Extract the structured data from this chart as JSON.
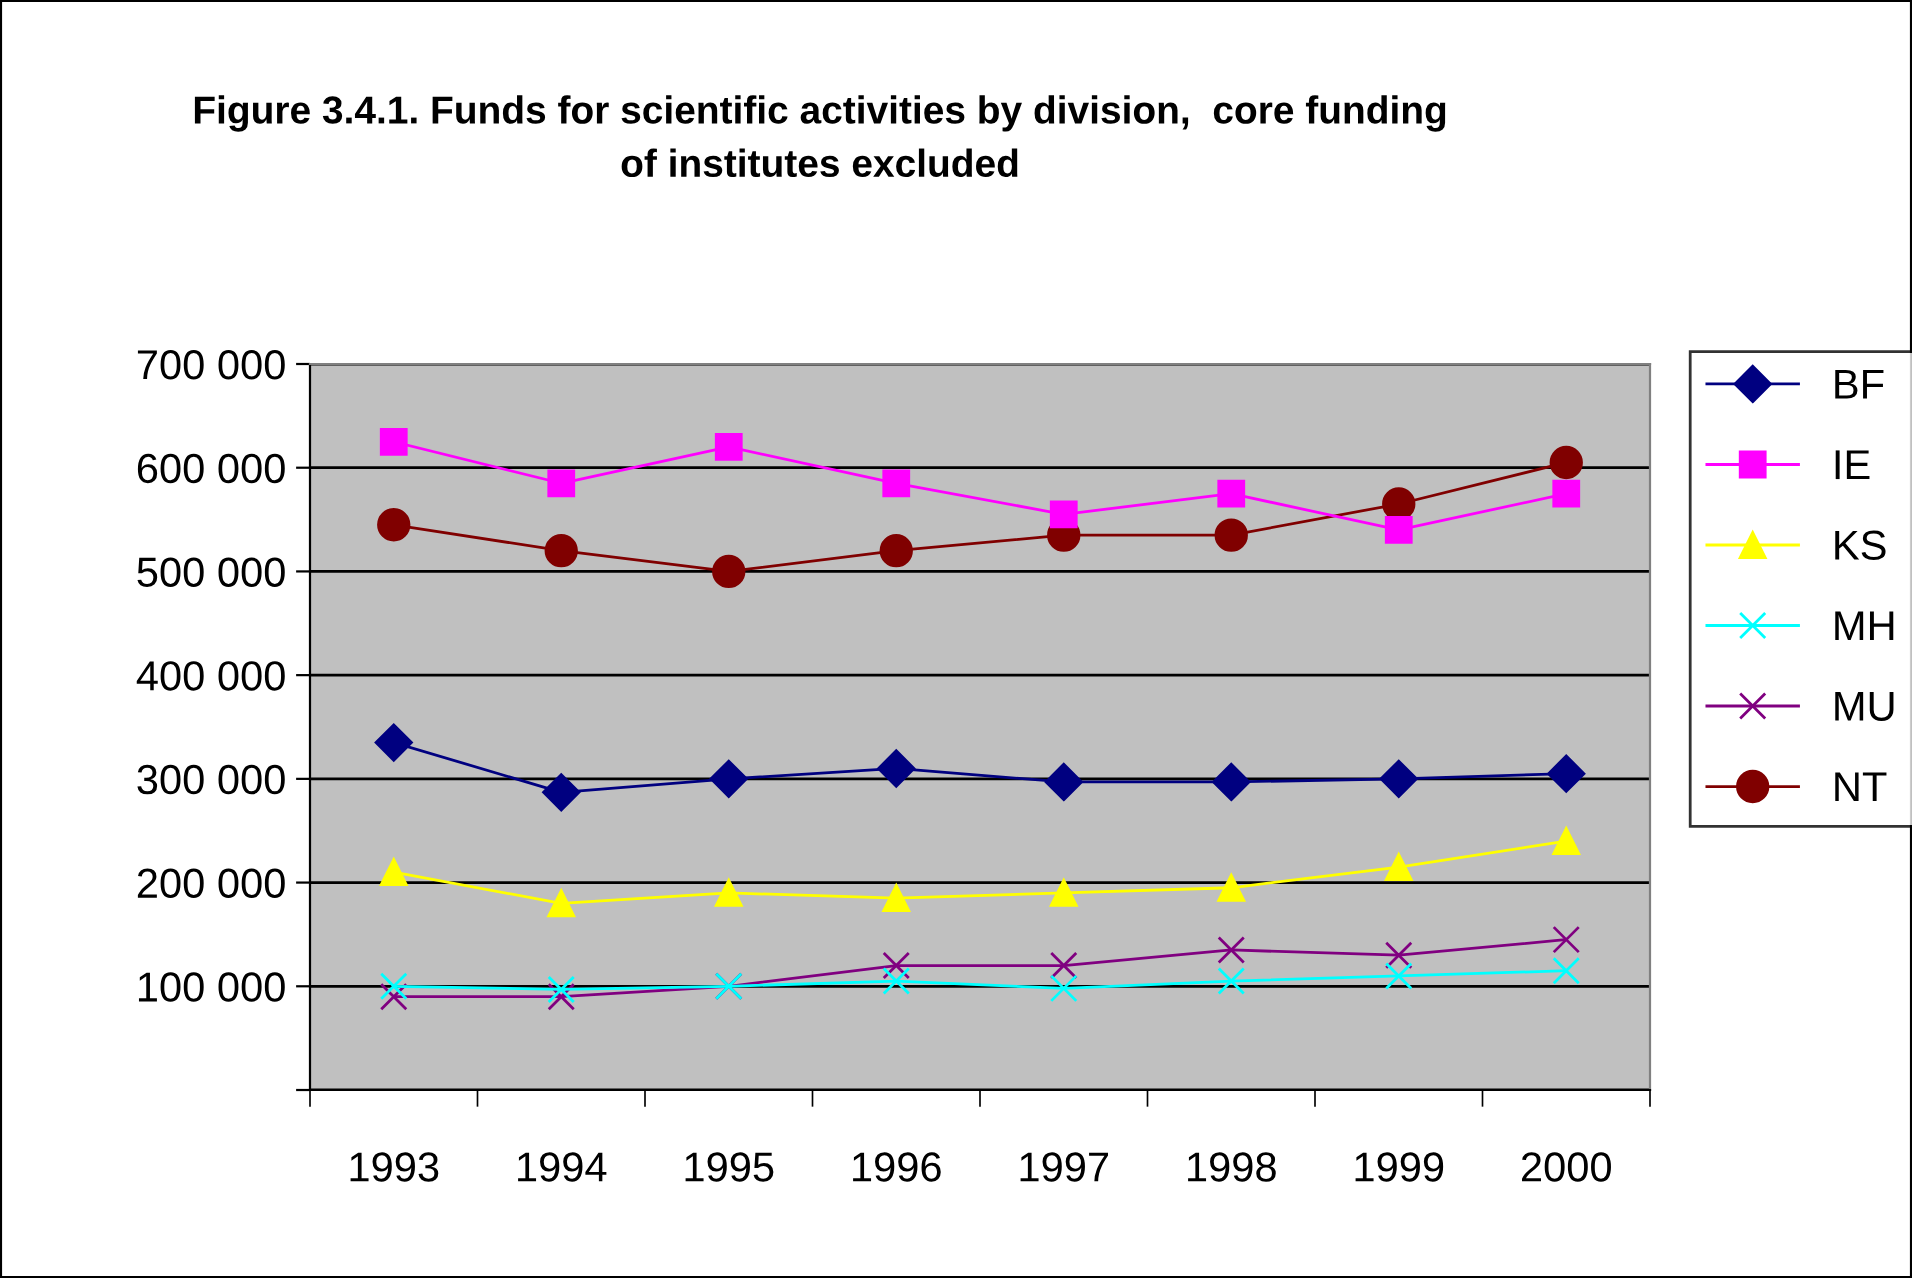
{
  "chart_data": {
    "type": "line",
    "title": "Figure 3.4.1. Funds for scientific activities by division,  core funding\nof institutes excluded",
    "categories": [
      "1993",
      "1994",
      "1995",
      "1996",
      "1997",
      "1998",
      "1999",
      "2000"
    ],
    "series": [
      {
        "name": "BF",
        "color": "#000080",
        "marker": "diamond",
        "values": [
          335000,
          287000,
          300000,
          310000,
          297000,
          297000,
          300000,
          305000
        ]
      },
      {
        "name": "IE",
        "color": "#ff00ff",
        "marker": "square",
        "values": [
          625000,
          585000,
          620000,
          585000,
          555000,
          575000,
          540000,
          575000
        ]
      },
      {
        "name": "KS",
        "color": "#ffff00",
        "marker": "triangle",
        "values": [
          210000,
          180000,
          190000,
          185000,
          190000,
          195000,
          215000,
          240000
        ]
      },
      {
        "name": "MH",
        "color": "#00ffff",
        "marker": "cross",
        "values": [
          100000,
          97000,
          100000,
          105000,
          98000,
          105000,
          110000,
          115000
        ]
      },
      {
        "name": "MU",
        "color": "#800080",
        "marker": "cross",
        "values": [
          90000,
          90000,
          100000,
          120000,
          120000,
          135000,
          130000,
          145000
        ]
      },
      {
        "name": "NT",
        "color": "#800000",
        "marker": "circle",
        "values": [
          545000,
          520000,
          500000,
          520000,
          535000,
          535000,
          565000,
          605000
        ]
      }
    ],
    "ylim": [
      0,
      700000
    ],
    "yticks": [
      {
        "value": 0,
        "label": null
      },
      {
        "value": 100000,
        "label": "100 000"
      },
      {
        "value": 200000,
        "label": "200 000"
      },
      {
        "value": 300000,
        "label": "300 000"
      },
      {
        "value": 400000,
        "label": "400 000"
      },
      {
        "value": 500000,
        "label": "500 000"
      },
      {
        "value": 600000,
        "label": "600 000"
      },
      {
        "value": 700000,
        "label": "700 000"
      }
    ],
    "grid": "y",
    "legend": "right",
    "line_style": "solid"
  }
}
